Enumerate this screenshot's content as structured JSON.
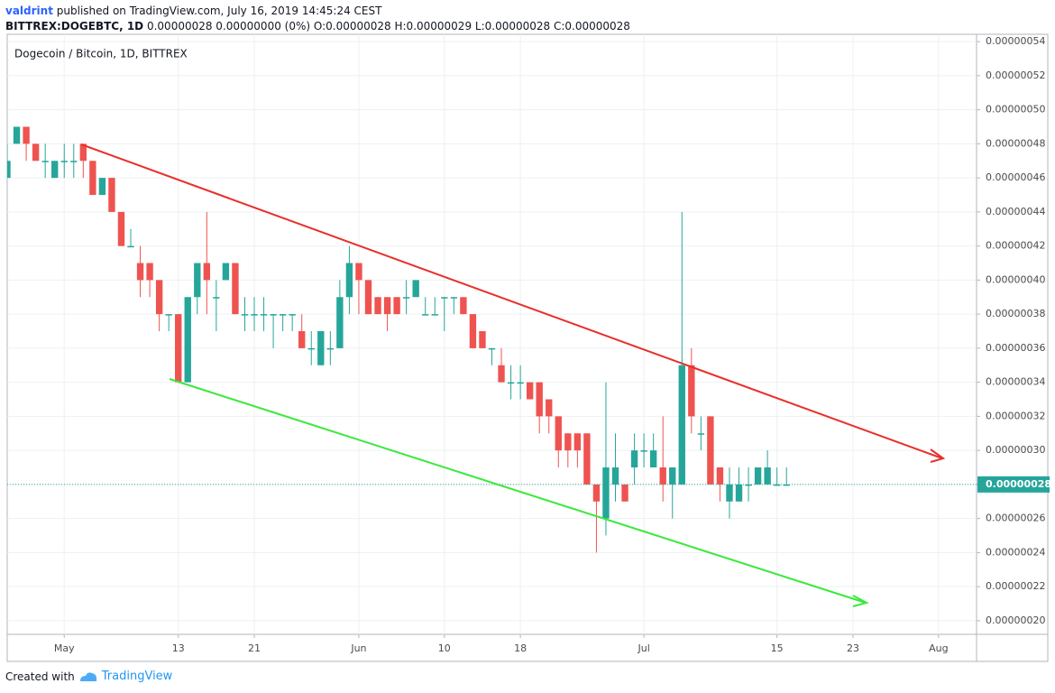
{
  "header": {
    "author": "valdrint",
    "published": "published on TradingView.com, July 16, 2019 14:45:24 CEST",
    "symbol": "BITTREX:DOGEBTC, 1D",
    "quote": "0.00000028 0.00000000 (0%) O:0.00000028 H:0.00000029 L:0.00000028 C:0.00000028"
  },
  "footer": {
    "created": "Created with",
    "brand": "TradingView"
  },
  "chart_data": {
    "type": "candlestick",
    "title": "Dogecoin / Bitcoin, 1D, BITTREX",
    "up_color": "#26a69a",
    "down_color": "#ef5350",
    "grid": true,
    "x": [
      "2019-04-25",
      "2019-04-26",
      "2019-04-27",
      "2019-04-28",
      "2019-04-29",
      "2019-04-30",
      "2019-05-01",
      "2019-05-02",
      "2019-05-03",
      "2019-05-04",
      "2019-05-05",
      "2019-05-06",
      "2019-05-07",
      "2019-05-08",
      "2019-05-09",
      "2019-05-10",
      "2019-05-11",
      "2019-05-12",
      "2019-05-13",
      "2019-05-14",
      "2019-05-15",
      "2019-05-16",
      "2019-05-17",
      "2019-05-18",
      "2019-05-19",
      "2019-05-20",
      "2019-05-21",
      "2019-05-22",
      "2019-05-23",
      "2019-05-24",
      "2019-05-25",
      "2019-05-26",
      "2019-05-27",
      "2019-05-28",
      "2019-05-29",
      "2019-05-30",
      "2019-05-31",
      "2019-06-01",
      "2019-06-02",
      "2019-06-03",
      "2019-06-04",
      "2019-06-05",
      "2019-06-06",
      "2019-06-07",
      "2019-06-08",
      "2019-06-09",
      "2019-06-10",
      "2019-06-11",
      "2019-06-12",
      "2019-06-13",
      "2019-06-14",
      "2019-06-15",
      "2019-06-16",
      "2019-06-17",
      "2019-06-18",
      "2019-06-19",
      "2019-06-20",
      "2019-06-21",
      "2019-06-22",
      "2019-06-23",
      "2019-06-24",
      "2019-06-25",
      "2019-06-26",
      "2019-06-27",
      "2019-06-28",
      "2019-06-29",
      "2019-06-30",
      "2019-07-01",
      "2019-07-02",
      "2019-07-03",
      "2019-07-04",
      "2019-07-05",
      "2019-07-06",
      "2019-07-07",
      "2019-07-08",
      "2019-07-09",
      "2019-07-10",
      "2019-07-11",
      "2019-07-12",
      "2019-07-13",
      "2019-07-14",
      "2019-07-15",
      "2019-07-16"
    ],
    "open": [
      4.6e-07,
      4.8e-07,
      4.9e-07,
      4.8e-07,
      4.7e-07,
      4.6e-07,
      4.7e-07,
      4.7e-07,
      4.8e-07,
      4.7e-07,
      4.5e-07,
      4.6e-07,
      4.4e-07,
      4.2e-07,
      4.1e-07,
      4.1e-07,
      4e-07,
      3.8e-07,
      3.8e-07,
      3.4e-07,
      3.9e-07,
      4.1e-07,
      3.9e-07,
      4e-07,
      4.1e-07,
      3.8e-07,
      3.8e-07,
      3.8e-07,
      3.8e-07,
      3.8e-07,
      3.8e-07,
      3.7e-07,
      3.6e-07,
      3.5e-07,
      3.6e-07,
      3.6e-07,
      3.9e-07,
      4.1e-07,
      4e-07,
      3.9e-07,
      3.9e-07,
      3.9e-07,
      3.9e-07,
      3.9e-07,
      3.8e-07,
      3.8e-07,
      3.9e-07,
      3.9e-07,
      3.9e-07,
      3.8e-07,
      3.7e-07,
      3.6e-07,
      3.5e-07,
      3.4e-07,
      3.4e-07,
      3.4e-07,
      3.4e-07,
      3.3e-07,
      3.2e-07,
      3.1e-07,
      3.1e-07,
      3.1e-07,
      2.8e-07,
      2.6e-07,
      2.8e-07,
      2.8e-07,
      2.9e-07,
      3e-07,
      2.9e-07,
      2.9e-07,
      2.8e-07,
      2.8e-07,
      3.5e-07,
      3.1e-07,
      3.2e-07,
      2.9e-07,
      2.7e-07,
      2.7e-07,
      2.8e-07,
      2.8e-07,
      2.8e-07,
      2.8e-07,
      2.8e-07
    ],
    "high": [
      4.8e-07,
      4.9e-07,
      4.9e-07,
      4.8e-07,
      4.8e-07,
      4.7e-07,
      4.8e-07,
      4.8e-07,
      4.8e-07,
      4.7e-07,
      4.6e-07,
      4.6e-07,
      4.4e-07,
      4.3e-07,
      4.2e-07,
      4.1e-07,
      4e-07,
      3.8e-07,
      3.8e-07,
      3.9e-07,
      4.1e-07,
      4.4e-07,
      4e-07,
      4.1e-07,
      4.1e-07,
      3.9e-07,
      3.9e-07,
      3.9e-07,
      3.8e-07,
      3.8e-07,
      3.8e-07,
      3.8e-07,
      3.7e-07,
      3.7e-07,
      3.7e-07,
      4e-07,
      4.2e-07,
      4.1e-07,
      4e-07,
      3.9e-07,
      3.9e-07,
      3.9e-07,
      4e-07,
      4e-07,
      3.9e-07,
      3.9e-07,
      3.9e-07,
      3.9e-07,
      3.9e-07,
      3.8e-07,
      3.7e-07,
      3.6e-07,
      3.6e-07,
      3.5e-07,
      3.5e-07,
      3.4e-07,
      3.4e-07,
      3.3e-07,
      3.2e-07,
      3.1e-07,
      3.1e-07,
      3.1e-07,
      2.8e-07,
      3.4e-07,
      3.1e-07,
      2.8e-07,
      3.1e-07,
      3.1e-07,
      3.1e-07,
      3.2e-07,
      2.9e-07,
      4.4e-07,
      3.6e-07,
      3.2e-07,
      3.2e-07,
      2.9e-07,
      2.9e-07,
      2.9e-07,
      2.9e-07,
      2.9e-07,
      3e-07,
      2.9e-07,
      2.9e-07
    ],
    "low": [
      4.6e-07,
      4.8e-07,
      4.7e-07,
      4.7e-07,
      4.6e-07,
      4.6e-07,
      4.6e-07,
      4.6e-07,
      4.6e-07,
      4.5e-07,
      4.5e-07,
      4.4e-07,
      4.2e-07,
      4.2e-07,
      3.9e-07,
      3.9e-07,
      3.7e-07,
      3.7e-07,
      3.4e-07,
      3.4e-07,
      3.8e-07,
      3.8e-07,
      3.7e-07,
      4e-07,
      3.8e-07,
      3.7e-07,
      3.7e-07,
      3.7e-07,
      3.6e-07,
      3.7e-07,
      3.7e-07,
      3.6e-07,
      3.5e-07,
      3.5e-07,
      3.5e-07,
      3.6e-07,
      3.8e-07,
      3.8e-07,
      3.8e-07,
      3.8e-07,
      3.7e-07,
      3.8e-07,
      3.8e-07,
      3.9e-07,
      3.8e-07,
      3.8e-07,
      3.7e-07,
      3.8e-07,
      3.8e-07,
      3.6e-07,
      3.6e-07,
      3.5e-07,
      3.4e-07,
      3.3e-07,
      3.3e-07,
      3.3e-07,
      3.1e-07,
      3.1e-07,
      2.9e-07,
      2.9e-07,
      2.9e-07,
      2.8e-07,
      2.4e-07,
      2.5e-07,
      2.7e-07,
      2.7e-07,
      2.8e-07,
      2.9e-07,
      2.9e-07,
      2.7e-07,
      2.6e-07,
      2.8e-07,
      3.1e-07,
      3e-07,
      2.8e-07,
      2.7e-07,
      2.6e-07,
      2.7e-07,
      2.7e-07,
      2.8e-07,
      2.8e-07,
      2.8e-07,
      2.8e-07
    ],
    "close": [
      4.7e-07,
      4.9e-07,
      4.8e-07,
      4.7e-07,
      4.7e-07,
      4.7e-07,
      4.7e-07,
      4.7e-07,
      4.7e-07,
      4.5e-07,
      4.6e-07,
      4.4e-07,
      4.2e-07,
      4.2e-07,
      4e-07,
      4e-07,
      3.8e-07,
      3.8e-07,
      3.4e-07,
      3.9e-07,
      4.1e-07,
      4e-07,
      3.9e-07,
      4.1e-07,
      3.8e-07,
      3.8e-07,
      3.8e-07,
      3.8e-07,
      3.8e-07,
      3.8e-07,
      3.8e-07,
      3.6e-07,
      3.6e-07,
      3.7e-07,
      3.6e-07,
      3.9e-07,
      4.1e-07,
      4e-07,
      3.8e-07,
      3.8e-07,
      3.8e-07,
      3.8e-07,
      3.9e-07,
      4e-07,
      3.8e-07,
      3.8e-07,
      3.9e-07,
      3.9e-07,
      3.8e-07,
      3.6e-07,
      3.6e-07,
      3.6e-07,
      3.4e-07,
      3.4e-07,
      3.4e-07,
      3.3e-07,
      3.2e-07,
      3.2e-07,
      3e-07,
      3e-07,
      3e-07,
      2.8e-07,
      2.7e-07,
      2.9e-07,
      2.9e-07,
      2.7e-07,
      3e-07,
      3e-07,
      3e-07,
      2.8e-07,
      2.9e-07,
      3.5e-07,
      3.2e-07,
      3.1e-07,
      2.8e-07,
      2.8e-07,
      2.8e-07,
      2.8e-07,
      2.8e-07,
      2.9e-07,
      2.9e-07,
      2.8e-07,
      2.8e-07
    ],
    "last_price": {
      "value": 2.8e-07,
      "label": "0.00000028"
    },
    "xlim": [
      "2019-04-25",
      "2019-08-05"
    ],
    "xticks": [
      {
        "value": "2019-05-01",
        "label": "May"
      },
      {
        "value": "2019-05-13",
        "label": "13"
      },
      {
        "value": "2019-05-21",
        "label": "21"
      },
      {
        "value": "2019-06-01",
        "label": "Jun"
      },
      {
        "value": "2019-06-10",
        "label": "10"
      },
      {
        "value": "2019-06-18",
        "label": "18"
      },
      {
        "value": "2019-07-01",
        "label": "Jul"
      },
      {
        "value": "2019-07-15",
        "label": "15"
      },
      {
        "value": "2019-07-23",
        "label": "23"
      },
      {
        "value": "2019-08-01",
        "label": "Aug"
      }
    ],
    "ylim": [
      1.92e-07,
      5.443e-07
    ],
    "yticks": [
      {
        "value": 2e-07,
        "label": "0.00000020"
      },
      {
        "value": 2.2e-07,
        "label": "0.00000022"
      },
      {
        "value": 2.4e-07,
        "label": "0.00000024"
      },
      {
        "value": 2.6e-07,
        "label": "0.00000026"
      },
      {
        "value": 2.8e-07,
        "label": "0.00000028"
      },
      {
        "value": 3e-07,
        "label": "0.00000030"
      },
      {
        "value": 3.2e-07,
        "label": "0.00000032"
      },
      {
        "value": 3.4e-07,
        "label": "0.00000034"
      },
      {
        "value": 3.6e-07,
        "label": "0.00000036"
      },
      {
        "value": 3.8e-07,
        "label": "0.00000038"
      },
      {
        "value": 4e-07,
        "label": "0.00000040"
      },
      {
        "value": 4.2e-07,
        "label": "0.00000042"
      },
      {
        "value": 4.4e-07,
        "label": "0.00000044"
      },
      {
        "value": 4.6e-07,
        "label": "0.00000046"
      },
      {
        "value": 4.8e-07,
        "label": "0.00000048"
      },
      {
        "value": 5e-07,
        "label": "0.00000050"
      },
      {
        "value": 5.2e-07,
        "label": "0.00000052"
      },
      {
        "value": 5.4e-07,
        "label": "0.00000054"
      }
    ]
  }
}
